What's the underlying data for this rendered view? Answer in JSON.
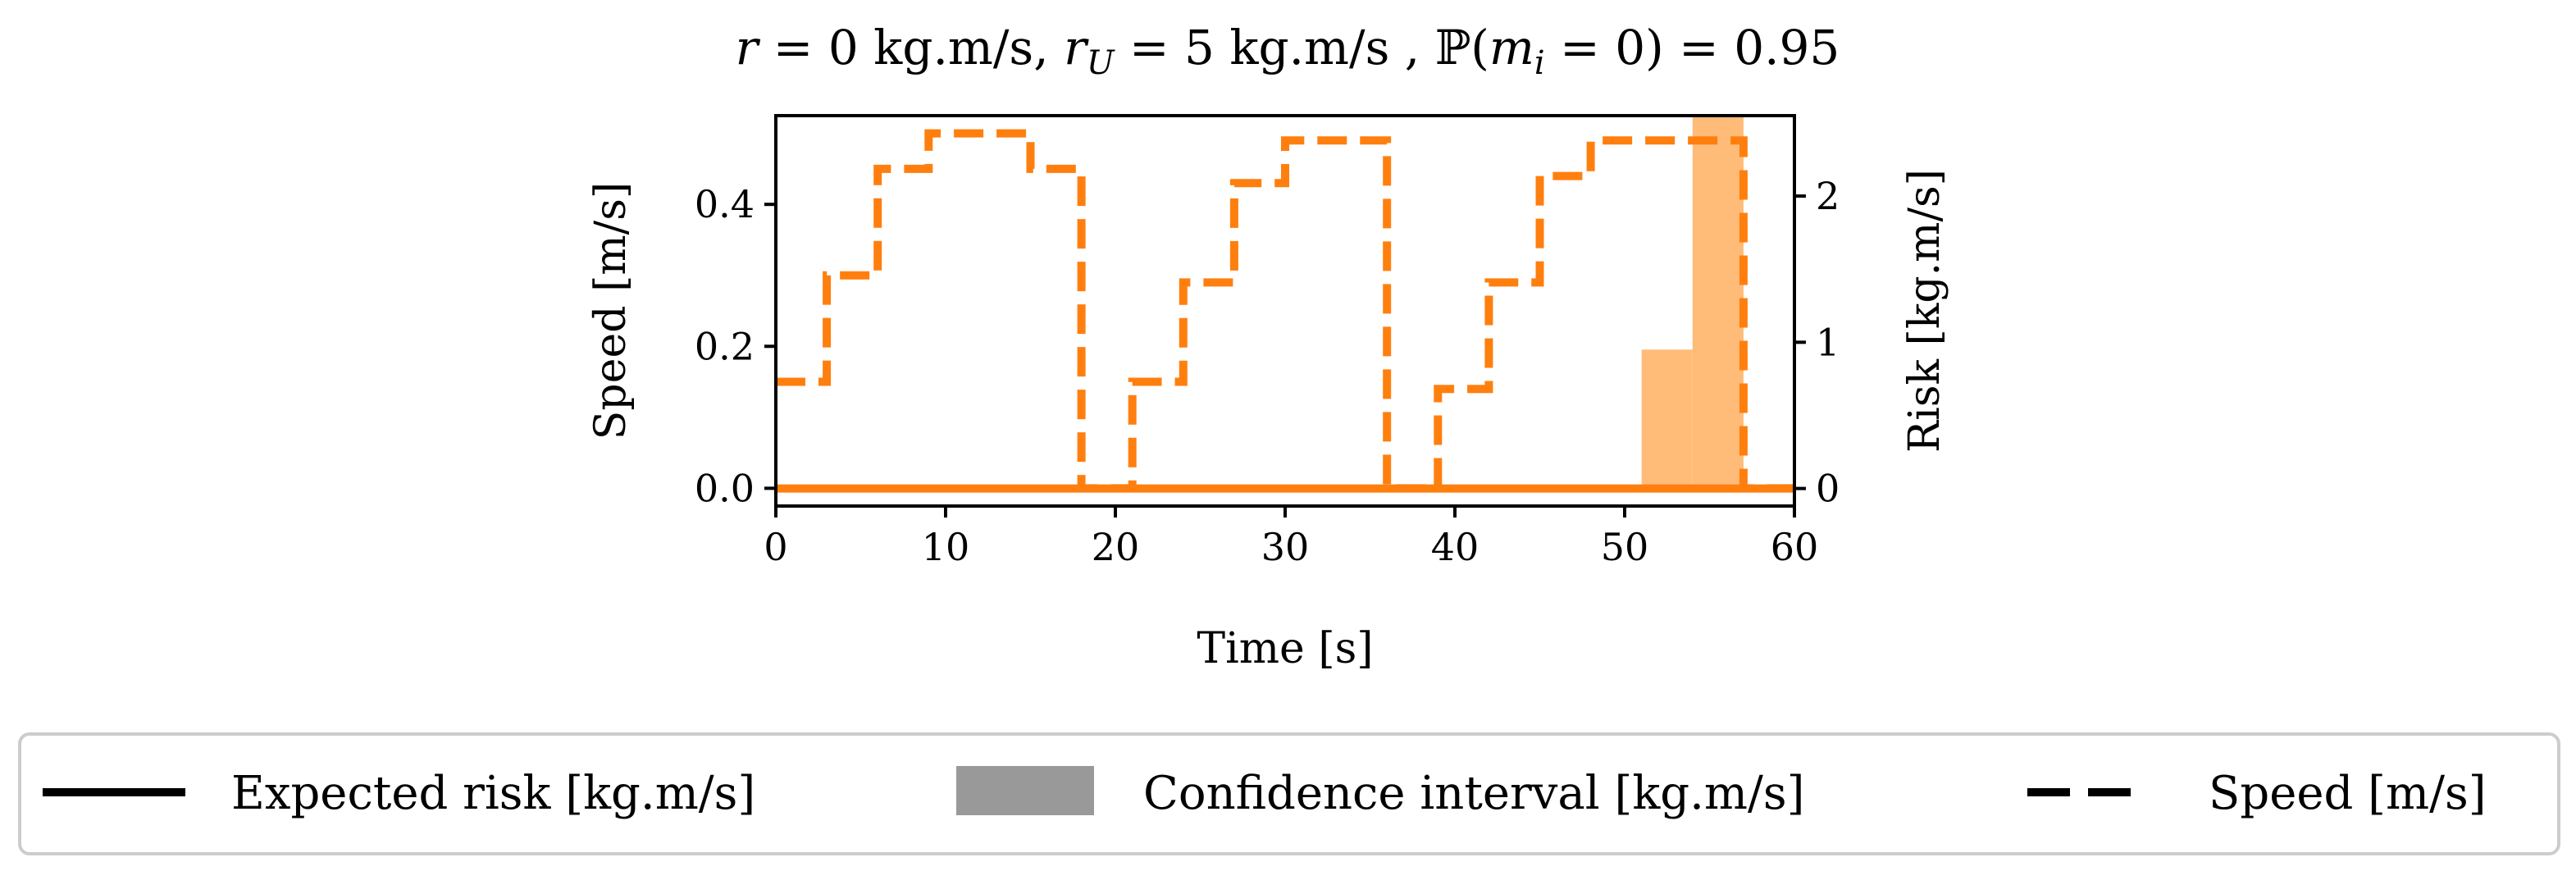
{
  "chart_data": {
    "type": "line",
    "title": "r = 0 kg.m/s, r_U = 5 kg.m/s , ℙ(m_i = 0) = 0.95",
    "title_parts": {
      "r": "r",
      "r_eq": " = 0 kg.m/s, ",
      "rU_base": "r",
      "rU_sub": "U",
      "rU_eq": " = 5 kg.m/s , ",
      "prob_sym": "ℙ(",
      "prob_m": "m",
      "prob_sub": "i",
      "prob_eq": " = 0) = 0.95"
    },
    "xlabel": "Time [s]",
    "ylabel_left": "Speed [m/s]",
    "ylabel_right": "Risk [kg.m/s]",
    "xlim": [
      0,
      60
    ],
    "ylim_left": [
      -0.025,
      0.525
    ],
    "ylim_right": [
      -0.12,
      2.55
    ],
    "xticks": [
      0,
      10,
      20,
      30,
      40,
      50,
      60
    ],
    "xtick_labels": [
      "0",
      "10",
      "20",
      "30",
      "40",
      "50",
      "60"
    ],
    "yticks_left": [
      0.0,
      0.2,
      0.4
    ],
    "ytick_labels_left": [
      "0.0",
      "0.2",
      "0.4"
    ],
    "yticks_right": [
      0,
      1,
      2
    ],
    "ytick_labels_right": [
      "0",
      "1",
      "2"
    ],
    "color": "#ff7f0e",
    "interval_color": "#ffbb78",
    "series": [
      {
        "name": "Speed [m/s]",
        "axis": "left",
        "style": "dashed",
        "x": [
          0,
          3,
          3,
          6,
          6,
          9,
          9,
          15,
          15,
          18,
          18,
          21,
          21,
          24,
          24,
          27,
          27,
          30,
          30,
          36,
          36,
          39,
          39,
          42,
          42,
          45,
          45,
          48,
          48,
          57,
          57,
          60
        ],
        "y": [
          0.15,
          0.15,
          0.3,
          0.3,
          0.45,
          0.45,
          0.5,
          0.5,
          0.45,
          0.45,
          0.0,
          0.0,
          0.15,
          0.15,
          0.29,
          0.29,
          0.43,
          0.43,
          0.49,
          0.49,
          0.0,
          0.0,
          0.14,
          0.14,
          0.29,
          0.29,
          0.44,
          0.44,
          0.49,
          0.49,
          0.0,
          0.0
        ]
      },
      {
        "name": "Expected risk [kg.m/s]",
        "axis": "right",
        "style": "solid",
        "x": [
          0,
          60
        ],
        "y": [
          0,
          0
        ]
      }
    ],
    "confidence_interval": {
      "name": "Confidence interval [kg.m/s]",
      "axis": "right",
      "steps": [
        {
          "x0": 51,
          "x1": 54,
          "low": 0,
          "high": 0.95
        },
        {
          "x0": 54,
          "x1": 57,
          "low": 0,
          "high": 2.55
        }
      ]
    },
    "legend": {
      "placement": "bottom",
      "entries": [
        {
          "label": "Expected risk [kg.m/s]",
          "kind": "solid",
          "color": "#000000"
        },
        {
          "label": "Confidence interval [kg.m/s]",
          "kind": "patch",
          "color": "#999999"
        },
        {
          "label": "Speed [m/s]",
          "kind": "dashed",
          "color": "#000000"
        }
      ]
    }
  }
}
